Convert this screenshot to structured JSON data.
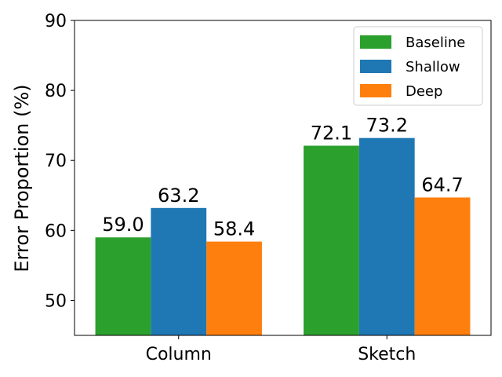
{
  "chart_data": {
    "type": "bar",
    "title": "",
    "xlabel": "",
    "ylabel": "Error Proportion (%)",
    "ylim": [
      45,
      90
    ],
    "yticks": [
      50,
      60,
      70,
      80,
      90
    ],
    "categories": [
      "Column",
      "Sketch"
    ],
    "series": [
      {
        "name": "Baseline",
        "color": "#2ca02c",
        "values": [
          59.0,
          72.1
        ],
        "labels": [
          "59.0",
          "72.1"
        ]
      },
      {
        "name": "Shallow",
        "color": "#1f77b4",
        "values": [
          63.2,
          73.2
        ],
        "labels": [
          "63.2",
          "73.2"
        ]
      },
      {
        "name": "Deep",
        "color": "#ff7f0e",
        "values": [
          58.4,
          64.7
        ],
        "labels": [
          "58.4",
          "64.7"
        ]
      }
    ],
    "legend": "top-right",
    "grid": false
  }
}
